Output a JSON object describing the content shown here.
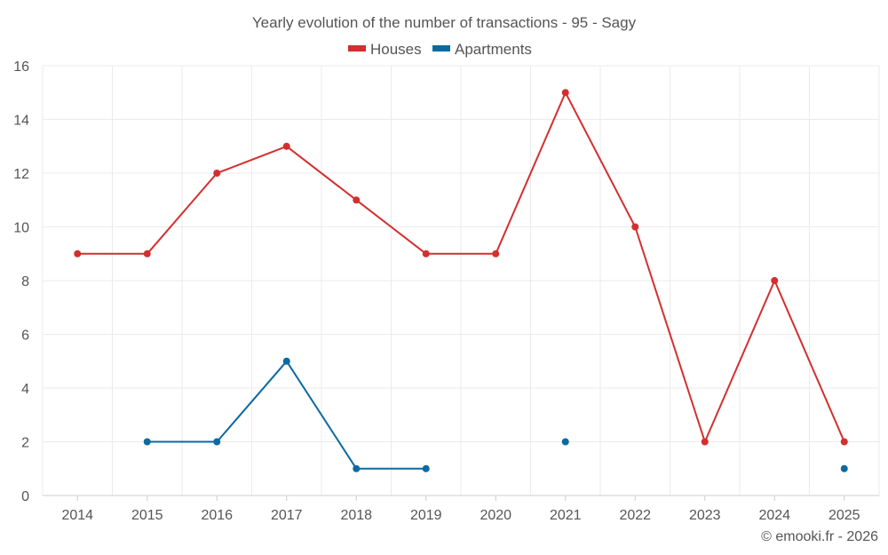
{
  "chart_data": {
    "type": "line",
    "title": "Yearly evolution of the number of transactions - 95 - Sagy",
    "categories": [
      "2014",
      "2015",
      "2016",
      "2017",
      "2018",
      "2019",
      "2020",
      "2021",
      "2022",
      "2023",
      "2024",
      "2025"
    ],
    "y_ticks": [
      "0",
      "2",
      "4",
      "6",
      "8",
      "10",
      "12",
      "14",
      "16"
    ],
    "ylim": [
      0,
      16
    ],
    "xlabel": "",
    "ylabel": "",
    "grid": true,
    "legend_position": "top-center",
    "series": [
      {
        "name": "Houses",
        "color": "#d32f2f",
        "values": [
          9,
          9,
          12,
          13,
          11,
          9,
          9,
          15,
          10,
          2,
          8,
          2
        ]
      },
      {
        "name": "Apartments",
        "color": "#0a6aa1",
        "values": [
          null,
          2,
          2,
          5,
          1,
          1,
          null,
          2,
          null,
          null,
          null,
          1
        ]
      }
    ]
  },
  "footer": {
    "credit": "© emooki.fr - 2026"
  }
}
